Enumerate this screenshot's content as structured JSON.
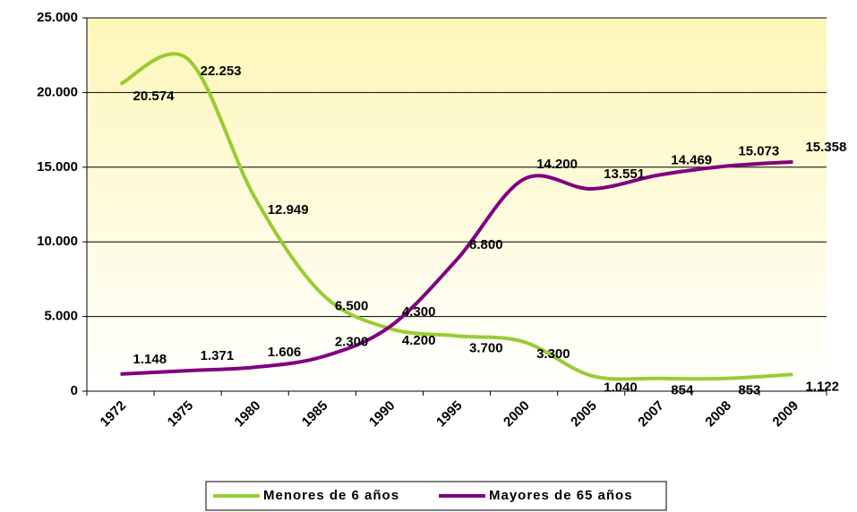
{
  "chart_data": {
    "type": "line",
    "categories": [
      "1972",
      "1975",
      "1980",
      "1985",
      "1990",
      "1995",
      "2000",
      "2005",
      "2007",
      "2008",
      "2009"
    ],
    "series": [
      {
        "name": "Menores de 6 años",
        "color": "#99cc33",
        "values": [
          20574,
          22253,
          12949,
          6500,
          4200,
          3700,
          3300,
          1040,
          854,
          853,
          1122
        ],
        "value_labels": [
          "20.574",
          "22.253",
          "12.949",
          "6.500",
          "4.200",
          "3.700",
          "3.300",
          "1.040",
          "854",
          "853",
          "1.122"
        ]
      },
      {
        "name": "Mayores de 65 años",
        "color": "#800080",
        "values": [
          1148,
          1371,
          1606,
          2300,
          4300,
          8800,
          14200,
          13551,
          14469,
          15073,
          15358
        ],
        "value_labels": [
          "1.148",
          "1.371",
          "1.606",
          "2.300",
          "4.300",
          "8.800",
          "14.200",
          "13.551",
          "14.469",
          "15.073",
          "15.358"
        ]
      }
    ],
    "ylim": [
      0,
      25000
    ],
    "yticks": [
      0,
      {
        "value": 5000,
        "label": "5.000"
      },
      {
        "value": 10000,
        "label": "10.000"
      },
      {
        "value": 15000,
        "label": "15.000"
      },
      {
        "value": 20000,
        "label": "20.000"
      },
      {
        "value": 25000,
        "label": "25.000"
      }
    ],
    "grid": true,
    "smooth": true,
    "legend": "bottom"
  }
}
